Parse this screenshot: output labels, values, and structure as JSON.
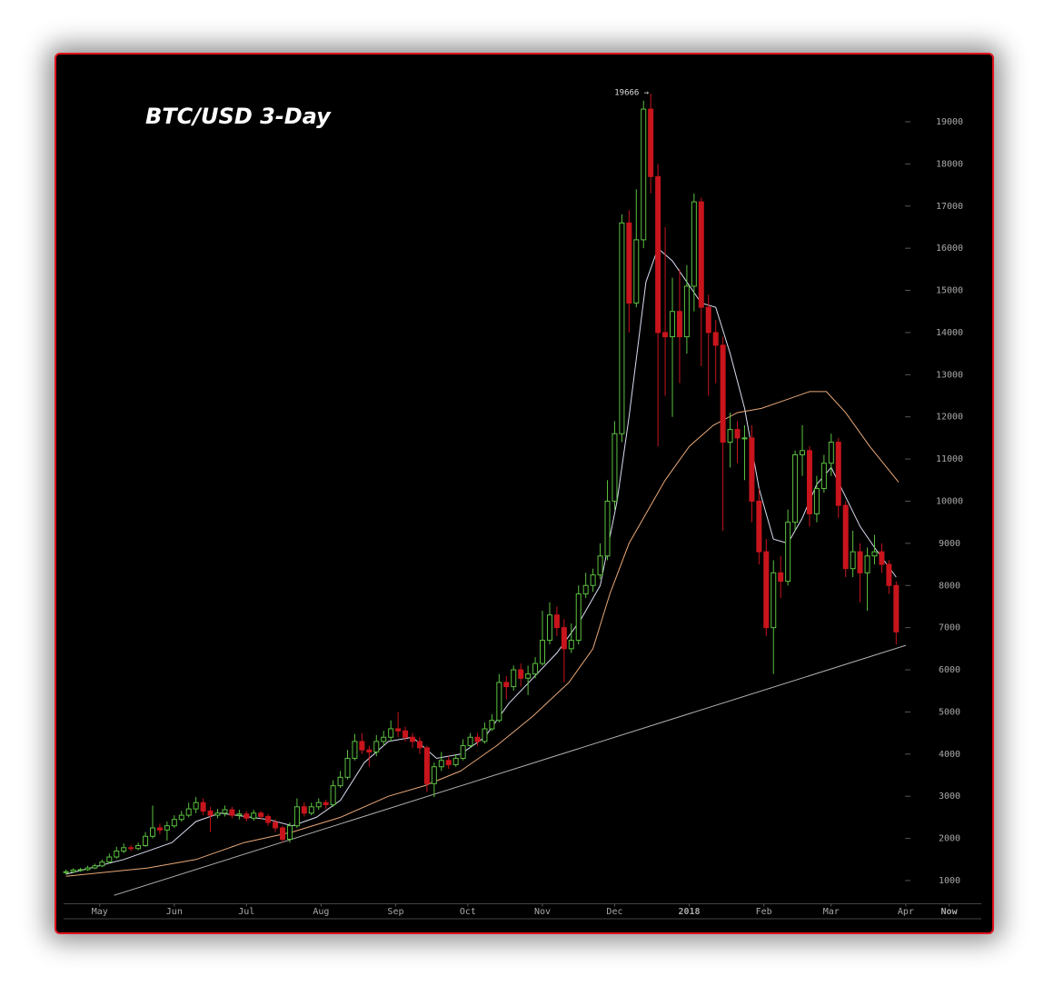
{
  "chart_data": {
    "type": "candlestick",
    "title": "BTC/USD 3-Day",
    "annotations": [
      {
        "text": "19666 →",
        "x": 349,
        "y": 19666
      }
    ],
    "xlim": [
      105,
      486
    ],
    "ylim": [
      450,
      20000
    ],
    "xticks": [
      {
        "value": 120,
        "label": "May"
      },
      {
        "value": 151,
        "label": "Jun"
      },
      {
        "value": 181,
        "label": "Jul"
      },
      {
        "value": 212,
        "label": "Aug"
      },
      {
        "value": 243,
        "label": "Sep"
      },
      {
        "value": 273,
        "label": "Oct"
      },
      {
        "value": 304,
        "label": "Nov"
      },
      {
        "value": 334,
        "label": "Dec"
      },
      {
        "value": 365,
        "label": "2018",
        "bold": true
      },
      {
        "value": 396,
        "label": "Feb"
      },
      {
        "value": 424,
        "label": "Mar"
      },
      {
        "value": 455,
        "label": "Apr"
      },
      {
        "value": 473,
        "label": "Now",
        "bold": true
      }
    ],
    "yticks": [
      1000,
      2000,
      3000,
      4000,
      5000,
      6000,
      7000,
      8000,
      9000,
      10000,
      11000,
      12000,
      13000,
      14000,
      15000,
      16000,
      17000,
      18000,
      19000
    ],
    "up_color": "#5cc040",
    "down_color": "#c8141c",
    "x": [
      106,
      109,
      112,
      115,
      118,
      121,
      124,
      127,
      130,
      133,
      136,
      139,
      142,
      145,
      148,
      151,
      154,
      157,
      160,
      163,
      166,
      169,
      172,
      175,
      178,
      181,
      184,
      187,
      190,
      193,
      196,
      199,
      202,
      205,
      208,
      211,
      214,
      217,
      220,
      223,
      226,
      229,
      232,
      235,
      238,
      241,
      244,
      247,
      250,
      253,
      256,
      259,
      262,
      265,
      268,
      271,
      274,
      277,
      280,
      283,
      286,
      289,
      292,
      295,
      298,
      301,
      304,
      307,
      310,
      313,
      316,
      319,
      322,
      325,
      328,
      331,
      334,
      337,
      340,
      343,
      346,
      349,
      352,
      355,
      358,
      361,
      364,
      367,
      370,
      373,
      376,
      379,
      382,
      385,
      388,
      391,
      394,
      397,
      400,
      403,
      406,
      409,
      412,
      415,
      418,
      421,
      424,
      427,
      430,
      433,
      436,
      439,
      442,
      445,
      448,
      451
    ],
    "open": [
      1190,
      1210,
      1250,
      1260,
      1300,
      1350,
      1440,
      1560,
      1700,
      1780,
      1760,
      1830,
      2050,
      2250,
      2200,
      2300,
      2450,
      2550,
      2700,
      2850,
      2650,
      2550,
      2600,
      2680,
      2550,
      2580,
      2480,
      2600,
      2520,
      2380,
      2250,
      1980,
      2300,
      2750,
      2600,
      2750,
      2850,
      2800,
      3250,
      3450,
      3900,
      4300,
      4100,
      4050,
      4300,
      4400,
      4600,
      4550,
      4400,
      4300,
      4150,
      3300,
      3700,
      3850,
      3750,
      3900,
      4200,
      4400,
      4300,
      4600,
      4800,
      5700,
      5600,
      6000,
      5800,
      5900,
      6150,
      6700,
      7300,
      7000,
      6500,
      6700,
      7800,
      8000,
      8250,
      8700,
      10000,
      11600,
      16600,
      14700,
      16200,
      19300,
      17700,
      14000,
      13900,
      14500,
      13900,
      15100,
      17100,
      14600,
      14000,
      13700,
      11400,
      11700,
      11500,
      11500,
      10000,
      8800,
      7000,
      8300,
      8100,
      9500,
      11100,
      11200,
      9700,
      10300,
      10900,
      11400,
      9900,
      8400,
      8800,
      8300,
      8700,
      8800,
      8500,
      8000
    ],
    "high": [
      1260,
      1290,
      1300,
      1350,
      1400,
      1500,
      1640,
      1800,
      1880,
      1840,
      1900,
      2150,
      2780,
      2350,
      2400,
      2550,
      2650,
      2850,
      2980,
      2950,
      2750,
      2700,
      2780,
      2750,
      2680,
      2650,
      2680,
      2650,
      2580,
      2450,
      2300,
      2380,
      2950,
      2850,
      2850,
      2950,
      2920,
      3380,
      3600,
      4100,
      4480,
      4500,
      4200,
      4450,
      4550,
      4800,
      5000,
      4650,
      4500,
      4400,
      4200,
      3800,
      4050,
      3950,
      4000,
      4350,
      4500,
      4500,
      4750,
      4950,
      5900,
      5850,
      6100,
      6150,
      6100,
      6300,
      7400,
      7600,
      7500,
      7200,
      7100,
      8000,
      8300,
      8400,
      9000,
      10500,
      11900,
      16800,
      16900,
      17400,
      19500,
      19666,
      18000,
      16500,
      15300,
      15500,
      15600,
      17300,
      17200,
      14900,
      14300,
      13900,
      12100,
      11900,
      11800,
      11800,
      10300,
      9100,
      8600,
      8700,
      9800,
      11200,
      11800,
      11300,
      10600,
      11100,
      11600,
      11500,
      10000,
      9300,
      9000,
      8900,
      9200,
      9000,
      8600,
      8100
    ],
    "low": [
      1150,
      1180,
      1210,
      1230,
      1270,
      1320,
      1400,
      1520,
      1650,
      1700,
      1720,
      1800,
      2000,
      2100,
      1950,
      2250,
      2400,
      2500,
      2600,
      2550,
      2150,
      2480,
      2520,
      2480,
      2450,
      2400,
      2420,
      2440,
      2300,
      2150,
      1900,
      1900,
      2250,
      2520,
      2550,
      2680,
      2700,
      2750,
      3200,
      3400,
      3850,
      4000,
      3700,
      3950,
      4200,
      4300,
      4400,
      4300,
      4150,
      4000,
      3100,
      2980,
      3600,
      3650,
      3700,
      3850,
      4150,
      4200,
      4250,
      4550,
      4750,
      5300,
      5500,
      5600,
      5400,
      5800,
      6100,
      6600,
      6800,
      5700,
      6400,
      6600,
      7700,
      7850,
      8150,
      8600,
      9800,
      11400,
      14000,
      14600,
      16000,
      17300,
      11300,
      12500,
      12000,
      12800,
      13500,
      14500,
      13200,
      12500,
      12800,
      9300,
      10800,
      10900,
      10500,
      9500,
      8500,
      6800,
      5900,
      7700,
      8000,
      9300,
      10600,
      9400,
      9500,
      10200,
      10600,
      9600,
      8200,
      8200,
      7600,
      7400,
      8500,
      8300,
      7800,
      6600
    ],
    "close": [
      1210,
      1250,
      1260,
      1300,
      1350,
      1440,
      1560,
      1700,
      1780,
      1760,
      1830,
      2050,
      2250,
      2200,
      2300,
      2450,
      2550,
      2700,
      2850,
      2650,
      2550,
      2600,
      2680,
      2550,
      2580,
      2480,
      2600,
      2520,
      2380,
      2250,
      1980,
      2300,
      2750,
      2600,
      2750,
      2850,
      2800,
      3250,
      3450,
      3900,
      4300,
      4100,
      4050,
      4300,
      4400,
      4600,
      4550,
      4400,
      4300,
      4150,
      3300,
      3700,
      3850,
      3750,
      3900,
      4200,
      4400,
      4300,
      4600,
      4800,
      5700,
      5600,
      6000,
      5800,
      5900,
      6150,
      6700,
      7300,
      7000,
      6500,
      6700,
      7800,
      8000,
      8250,
      8700,
      10000,
      11600,
      16600,
      14700,
      16200,
      19300,
      17700,
      14000,
      13900,
      14500,
      13900,
      15100,
      17100,
      14600,
      14000,
      13700,
      11400,
      11700,
      11500,
      11500,
      10000,
      8800,
      7000,
      8300,
      8100,
      9500,
      11100,
      11200,
      9700,
      10300,
      10900,
      11400,
      9900,
      8400,
      8800,
      8300,
      8700,
      8800,
      8500,
      8000,
      6900
    ],
    "lines": [
      {
        "color": "#d8dcf0",
        "x": [
          106,
          130,
          150,
          160,
          170,
          190,
          200,
          210,
          220,
          230,
          240,
          250,
          260,
          270,
          280,
          290,
          300,
          310,
          320,
          328,
          335,
          340,
          347,
          352,
          358,
          364,
          370,
          376,
          382,
          388,
          394,
          400,
          406,
          412,
          418,
          424,
          430,
          436,
          442,
          451
        ],
        "values": [
          1150,
          1500,
          1900,
          2400,
          2600,
          2450,
          2300,
          2500,
          2900,
          3800,
          4300,
          4400,
          3900,
          4000,
          4400,
          5200,
          5800,
          6400,
          7200,
          8000,
          10000,
          12000,
          15200,
          16000,
          15700,
          15200,
          14700,
          14600,
          13500,
          12200,
          10300,
          9100,
          9000,
          9600,
          10400,
          10800,
          10100,
          9400,
          8900,
          8200
        ]
      },
      {
        "color": "#e8a878",
        "x": [
          106,
          140,
          160,
          180,
          200,
          220,
          240,
          255,
          270,
          285,
          300,
          315,
          325,
          332,
          340,
          355,
          365,
          375,
          385,
          395,
          405,
          415,
          422,
          430,
          440,
          452
        ],
        "values": [
          1100,
          1300,
          1500,
          1900,
          2150,
          2500,
          3000,
          3250,
          3600,
          4200,
          4900,
          5700,
          6500,
          7800,
          9000,
          10500,
          11300,
          11800,
          12100,
          12200,
          12400,
          12600,
          12600,
          12100,
          11300,
          10450
        ]
      },
      {
        "color": "#b0b0b0",
        "x": [
          126,
          455
        ],
        "values": [
          650,
          6580
        ]
      }
    ]
  }
}
